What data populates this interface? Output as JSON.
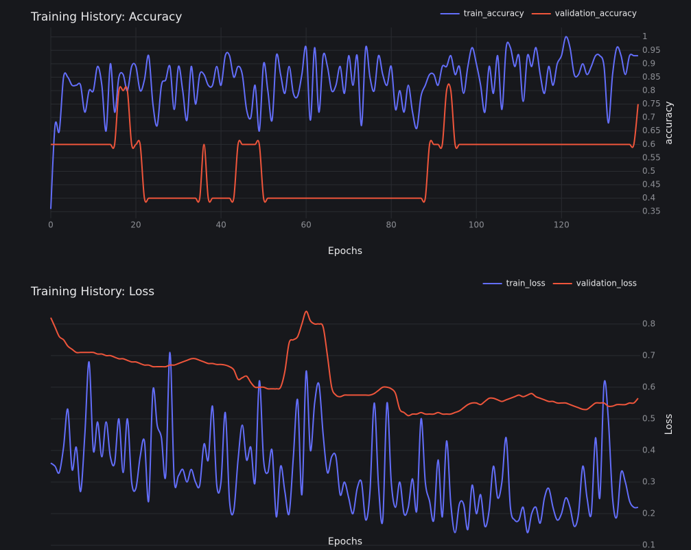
{
  "chart_data": [
    {
      "type": "line",
      "title": "Training History: Accuracy",
      "x_label": "Epochs",
      "y_label": "accuracy",
      "x": [
        0,
        1,
        2,
        3,
        4,
        5,
        6,
        7,
        8,
        9,
        10,
        11,
        12,
        13,
        14,
        15,
        16,
        17,
        18,
        19,
        20,
        21,
        22,
        23,
        24,
        25,
        26,
        27,
        28,
        29,
        30,
        31,
        32,
        33,
        34,
        35,
        36,
        37,
        38,
        39,
        40,
        41,
        42,
        43,
        44,
        45,
        46,
        47,
        48,
        49,
        50,
        51,
        52,
        53,
        54,
        55,
        56,
        57,
        58,
        59,
        60,
        61,
        62,
        63,
        64,
        65,
        66,
        67,
        68,
        69,
        70,
        71,
        72,
        73,
        74,
        75,
        76,
        77,
        78,
        79,
        80,
        81,
        82,
        83,
        84,
        85,
        86,
        87,
        88,
        89,
        90,
        91,
        92,
        93,
        94,
        95,
        96,
        97,
        98,
        99,
        100,
        101,
        102,
        103,
        104,
        105,
        106,
        107,
        108,
        109,
        110,
        111,
        112,
        113,
        114,
        115,
        116,
        117,
        118,
        119,
        120,
        121,
        122,
        123,
        124,
        125,
        126,
        127,
        128,
        129,
        130,
        131,
        132,
        133,
        134,
        135,
        136,
        137,
        138
      ],
      "series": [
        {
          "name": "train_accuracy",
          "color": "#636efa",
          "values": [
            0.36,
            0.67,
            0.65,
            0.85,
            0.85,
            0.82,
            0.82,
            0.82,
            0.72,
            0.8,
            0.8,
            0.89,
            0.82,
            0.65,
            0.9,
            0.72,
            0.85,
            0.86,
            0.8,
            0.89,
            0.89,
            0.8,
            0.84,
            0.93,
            0.75,
            0.67,
            0.82,
            0.84,
            0.89,
            0.73,
            0.89,
            0.8,
            0.69,
            0.89,
            0.75,
            0.86,
            0.86,
            0.82,
            0.82,
            0.89,
            0.82,
            0.93,
            0.93,
            0.85,
            0.89,
            0.86,
            0.73,
            0.7,
            0.82,
            0.65,
            0.9,
            0.8,
            0.69,
            0.93,
            0.86,
            0.79,
            0.89,
            0.79,
            0.78,
            0.86,
            0.96,
            0.69,
            0.96,
            0.72,
            0.93,
            0.89,
            0.8,
            0.82,
            0.89,
            0.79,
            0.93,
            0.82,
            0.93,
            0.67,
            0.96,
            0.85,
            0.8,
            0.93,
            0.86,
            0.82,
            0.89,
            0.73,
            0.8,
            0.72,
            0.82,
            0.72,
            0.66,
            0.78,
            0.82,
            0.86,
            0.86,
            0.82,
            0.89,
            0.89,
            0.93,
            0.86,
            0.89,
            0.79,
            0.89,
            0.96,
            0.9,
            0.82,
            0.72,
            0.89,
            0.79,
            0.93,
            0.73,
            0.96,
            0.96,
            0.89,
            0.93,
            0.76,
            0.93,
            0.89,
            0.96,
            0.86,
            0.79,
            0.89,
            0.82,
            0.9,
            0.93,
            1.0,
            0.96,
            0.86,
            0.86,
            0.9,
            0.86,
            0.89,
            0.93,
            0.93,
            0.89,
            0.68,
            0.86,
            0.96,
            0.93,
            0.86,
            0.93,
            0.93,
            0.93
          ]
        },
        {
          "name": "validation_accuracy",
          "color": "#ef553b",
          "values": [
            0.6,
            0.6,
            0.6,
            0.6,
            0.6,
            0.6,
            0.6,
            0.6,
            0.6,
            0.6,
            0.6,
            0.6,
            0.6,
            0.6,
            0.6,
            0.6,
            0.8,
            0.8,
            0.8,
            0.6,
            0.6,
            0.6,
            0.4,
            0.4,
            0.4,
            0.4,
            0.4,
            0.4,
            0.4,
            0.4,
            0.4,
            0.4,
            0.4,
            0.4,
            0.4,
            0.4,
            0.6,
            0.4,
            0.4,
            0.4,
            0.4,
            0.4,
            0.4,
            0.4,
            0.6,
            0.6,
            0.6,
            0.6,
            0.6,
            0.6,
            0.4,
            0.4,
            0.4,
            0.4,
            0.4,
            0.4,
            0.4,
            0.4,
            0.4,
            0.4,
            0.4,
            0.4,
            0.4,
            0.4,
            0.4,
            0.4,
            0.4,
            0.4,
            0.4,
            0.4,
            0.4,
            0.4,
            0.4,
            0.4,
            0.4,
            0.4,
            0.4,
            0.4,
            0.4,
            0.4,
            0.4,
            0.4,
            0.4,
            0.4,
            0.4,
            0.4,
            0.4,
            0.4,
            0.4,
            0.6,
            0.6,
            0.6,
            0.6,
            0.8,
            0.8,
            0.6,
            0.6,
            0.6,
            0.6,
            0.6,
            0.6,
            0.6,
            0.6,
            0.6,
            0.6,
            0.6,
            0.6,
            0.6,
            0.6,
            0.6,
            0.6,
            0.6,
            0.6,
            0.6,
            0.6,
            0.6,
            0.6,
            0.6,
            0.6,
            0.6,
            0.6,
            0.6,
            0.6,
            0.6,
            0.6,
            0.6,
            0.6,
            0.6,
            0.6,
            0.6,
            0.6,
            0.6,
            0.6,
            0.6,
            0.6,
            0.6,
            0.6,
            0.6,
            0.75
          ]
        }
      ],
      "xlim": [
        0,
        138.5
      ],
      "xticks": [
        0,
        20,
        40,
        60,
        80,
        100,
        120
      ],
      "ylim": [
        0.325,
        1.035
      ],
      "yticks": [
        0.35,
        0.4,
        0.45,
        0.5,
        0.55,
        0.6,
        0.65,
        0.7,
        0.75,
        0.8,
        0.85,
        0.9,
        0.95,
        1
      ],
      "grid": true,
      "legend": "top-right"
    },
    {
      "type": "line",
      "title": "Training History: Loss",
      "x_label": "Epochs",
      "y_label": "Loss",
      "x": [
        0,
        1,
        2,
        3,
        4,
        5,
        6,
        7,
        8,
        9,
        10,
        11,
        12,
        13,
        14,
        15,
        16,
        17,
        18,
        19,
        20,
        21,
        22,
        23,
        24,
        25,
        26,
        27,
        28,
        29,
        30,
        31,
        32,
        33,
        34,
        35,
        36,
        37,
        38,
        39,
        40,
        41,
        42,
        43,
        44,
        45,
        46,
        47,
        48,
        49,
        50,
        51,
        52,
        53,
        54,
        55,
        56,
        57,
        58,
        59,
        60,
        61,
        62,
        63,
        64,
        65,
        66,
        67,
        68,
        69,
        70,
        71,
        72,
        73,
        74,
        75,
        76,
        77,
        78,
        79,
        80,
        81,
        82,
        83,
        84,
        85,
        86,
        87,
        88,
        89,
        90,
        91,
        92,
        93,
        94,
        95,
        96,
        97,
        98,
        99,
        100,
        101,
        102,
        103,
        104,
        105,
        106,
        107,
        108,
        109,
        110,
        111,
        112,
        113,
        114,
        115,
        116,
        117,
        118,
        119,
        120,
        121,
        122,
        123,
        124,
        125,
        126,
        127,
        128,
        129,
        130,
        131,
        132,
        133,
        134,
        135,
        136,
        137,
        138
      ],
      "series": [
        {
          "name": "train_loss",
          "color": "#636efa",
          "values": [
            0.36,
            0.35,
            0.33,
            0.41,
            0.53,
            0.34,
            0.41,
            0.27,
            0.45,
            0.68,
            0.4,
            0.49,
            0.38,
            0.49,
            0.38,
            0.36,
            0.5,
            0.33,
            0.5,
            0.3,
            0.28,
            0.38,
            0.43,
            0.24,
            0.59,
            0.48,
            0.44,
            0.32,
            0.71,
            0.31,
            0.32,
            0.34,
            0.3,
            0.34,
            0.3,
            0.29,
            0.42,
            0.37,
            0.54,
            0.29,
            0.3,
            0.52,
            0.24,
            0.21,
            0.37,
            0.48,
            0.37,
            0.41,
            0.3,
            0.62,
            0.37,
            0.33,
            0.4,
            0.19,
            0.35,
            0.27,
            0.2,
            0.38,
            0.56,
            0.26,
            0.65,
            0.4,
            0.55,
            0.61,
            0.45,
            0.33,
            0.38,
            0.38,
            0.26,
            0.3,
            0.25,
            0.2,
            0.28,
            0.3,
            0.18,
            0.27,
            0.55,
            0.29,
            0.18,
            0.55,
            0.3,
            0.22,
            0.3,
            0.2,
            0.22,
            0.31,
            0.21,
            0.5,
            0.3,
            0.24,
            0.18,
            0.37,
            0.19,
            0.43,
            0.23,
            0.14,
            0.23,
            0.23,
            0.15,
            0.29,
            0.2,
            0.26,
            0.16,
            0.21,
            0.35,
            0.25,
            0.3,
            0.44,
            0.22,
            0.18,
            0.18,
            0.22,
            0.14,
            0.2,
            0.22,
            0.17,
            0.25,
            0.28,
            0.22,
            0.18,
            0.2,
            0.25,
            0.22,
            0.16,
            0.2,
            0.35,
            0.25,
            0.2,
            0.44,
            0.25,
            0.61,
            0.5,
            0.25,
            0.19,
            0.33,
            0.3,
            0.24,
            0.22,
            0.22
          ]
        },
        {
          "name": "validation_loss",
          "color": "#ef553b",
          "values": [
            0.82,
            0.79,
            0.76,
            0.75,
            0.73,
            0.72,
            0.71,
            0.71,
            0.71,
            0.71,
            0.71,
            0.705,
            0.705,
            0.7,
            0.7,
            0.695,
            0.69,
            0.69,
            0.685,
            0.68,
            0.68,
            0.675,
            0.67,
            0.67,
            0.665,
            0.665,
            0.665,
            0.665,
            0.67,
            0.67,
            0.675,
            0.68,
            0.685,
            0.69,
            0.69,
            0.685,
            0.68,
            0.675,
            0.675,
            0.672,
            0.672,
            0.67,
            0.665,
            0.655,
            0.625,
            0.63,
            0.635,
            0.615,
            0.6,
            0.6,
            0.6,
            0.595,
            0.595,
            0.595,
            0.6,
            0.65,
            0.74,
            0.75,
            0.76,
            0.8,
            0.84,
            0.81,
            0.8,
            0.8,
            0.79,
            0.7,
            0.6,
            0.575,
            0.57,
            0.575,
            0.575,
            0.575,
            0.575,
            0.575,
            0.575,
            0.575,
            0.58,
            0.59,
            0.6,
            0.6,
            0.595,
            0.58,
            0.53,
            0.52,
            0.51,
            0.515,
            0.515,
            0.52,
            0.515,
            0.515,
            0.515,
            0.52,
            0.515,
            0.515,
            0.515,
            0.52,
            0.525,
            0.535,
            0.545,
            0.55,
            0.55,
            0.545,
            0.555,
            0.565,
            0.565,
            0.56,
            0.555,
            0.56,
            0.565,
            0.57,
            0.575,
            0.57,
            0.575,
            0.58,
            0.57,
            0.565,
            0.56,
            0.555,
            0.555,
            0.55,
            0.55,
            0.55,
            0.545,
            0.54,
            0.535,
            0.53,
            0.53,
            0.54,
            0.55,
            0.55,
            0.55,
            0.54,
            0.54,
            0.545,
            0.545,
            0.545,
            0.55,
            0.55,
            0.565
          ]
        }
      ],
      "xlim": [
        0,
        138.5
      ],
      "ylim": [
        0.085,
        0.88
      ],
      "yticks": [
        0.1,
        0.2,
        0.3,
        0.4,
        0.5,
        0.6,
        0.7,
        0.8
      ],
      "grid": true,
      "legend": "top-right"
    }
  ]
}
